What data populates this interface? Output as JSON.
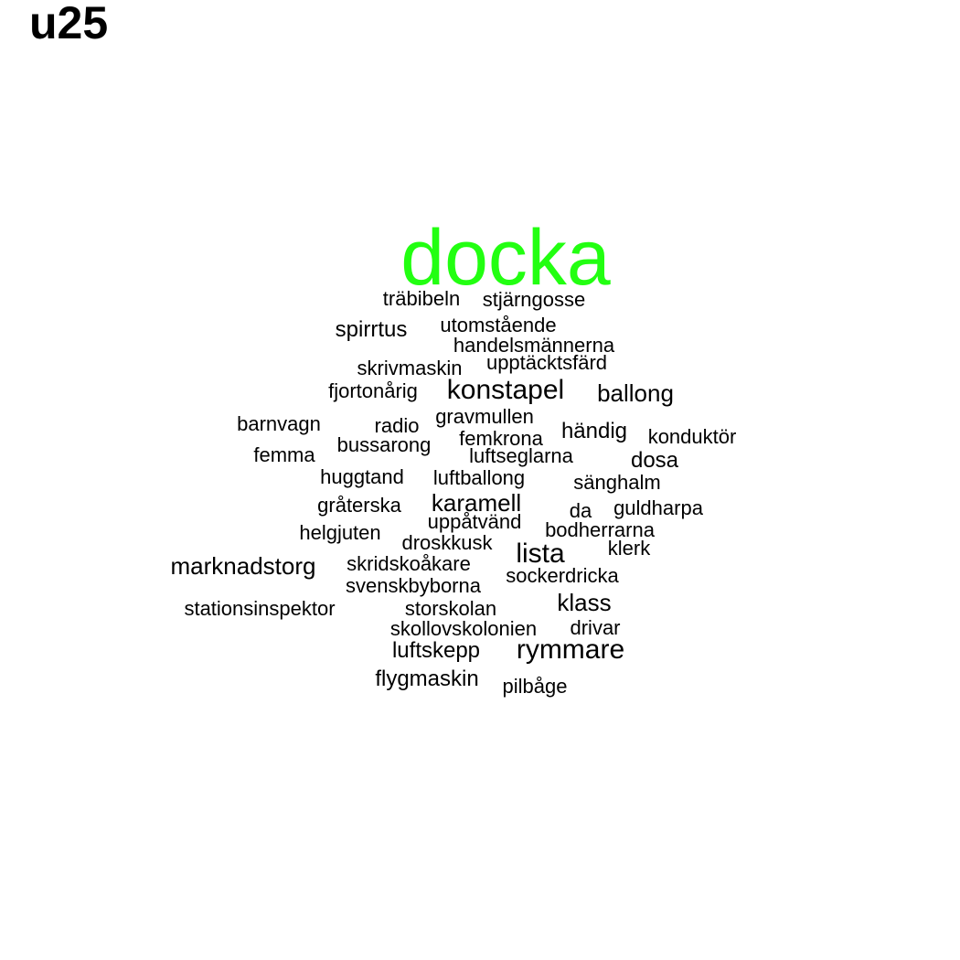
{
  "title": "u25",
  "colors": {
    "highlight": "#22ff11",
    "default": "#000000"
  },
  "words": [
    {
      "text": "docka",
      "highlight": true
    },
    {
      "text": "träbibeln"
    },
    {
      "text": "stjärngosse"
    },
    {
      "text": "spirrtus"
    },
    {
      "text": "utomstående"
    },
    {
      "text": "handelsmännerna"
    },
    {
      "text": "skrivmaskin"
    },
    {
      "text": "upptäcktsfärd"
    },
    {
      "text": "fjortonårig"
    },
    {
      "text": "konstapel"
    },
    {
      "text": "ballong"
    },
    {
      "text": "barnvagn"
    },
    {
      "text": "radio"
    },
    {
      "text": "gravmullen"
    },
    {
      "text": "händig"
    },
    {
      "text": "konduktör"
    },
    {
      "text": "femkrona"
    },
    {
      "text": "bussarong"
    },
    {
      "text": "femma"
    },
    {
      "text": "luftseglarna"
    },
    {
      "text": "dosa"
    },
    {
      "text": "huggtand"
    },
    {
      "text": "luftballong"
    },
    {
      "text": "sänghalm"
    },
    {
      "text": "gråterska"
    },
    {
      "text": "karamell"
    },
    {
      "text": "da"
    },
    {
      "text": "guldharpa"
    },
    {
      "text": "helgjuten"
    },
    {
      "text": "uppåtvänd"
    },
    {
      "text": "bodherrarna"
    },
    {
      "text": "droskkusk"
    },
    {
      "text": "klerk"
    },
    {
      "text": "lista"
    },
    {
      "text": "marknadstorg"
    },
    {
      "text": "skridskoåkare"
    },
    {
      "text": "sockerdricka"
    },
    {
      "text": "svenskbyborna"
    },
    {
      "text": "klass"
    },
    {
      "text": "stationsinspektor"
    },
    {
      "text": "storskolan"
    },
    {
      "text": "skollovskolonien"
    },
    {
      "text": "drivar"
    },
    {
      "text": "luftskepp"
    },
    {
      "text": "rymmare"
    },
    {
      "text": "flygmaskin"
    },
    {
      "text": "pilbåge"
    }
  ]
}
